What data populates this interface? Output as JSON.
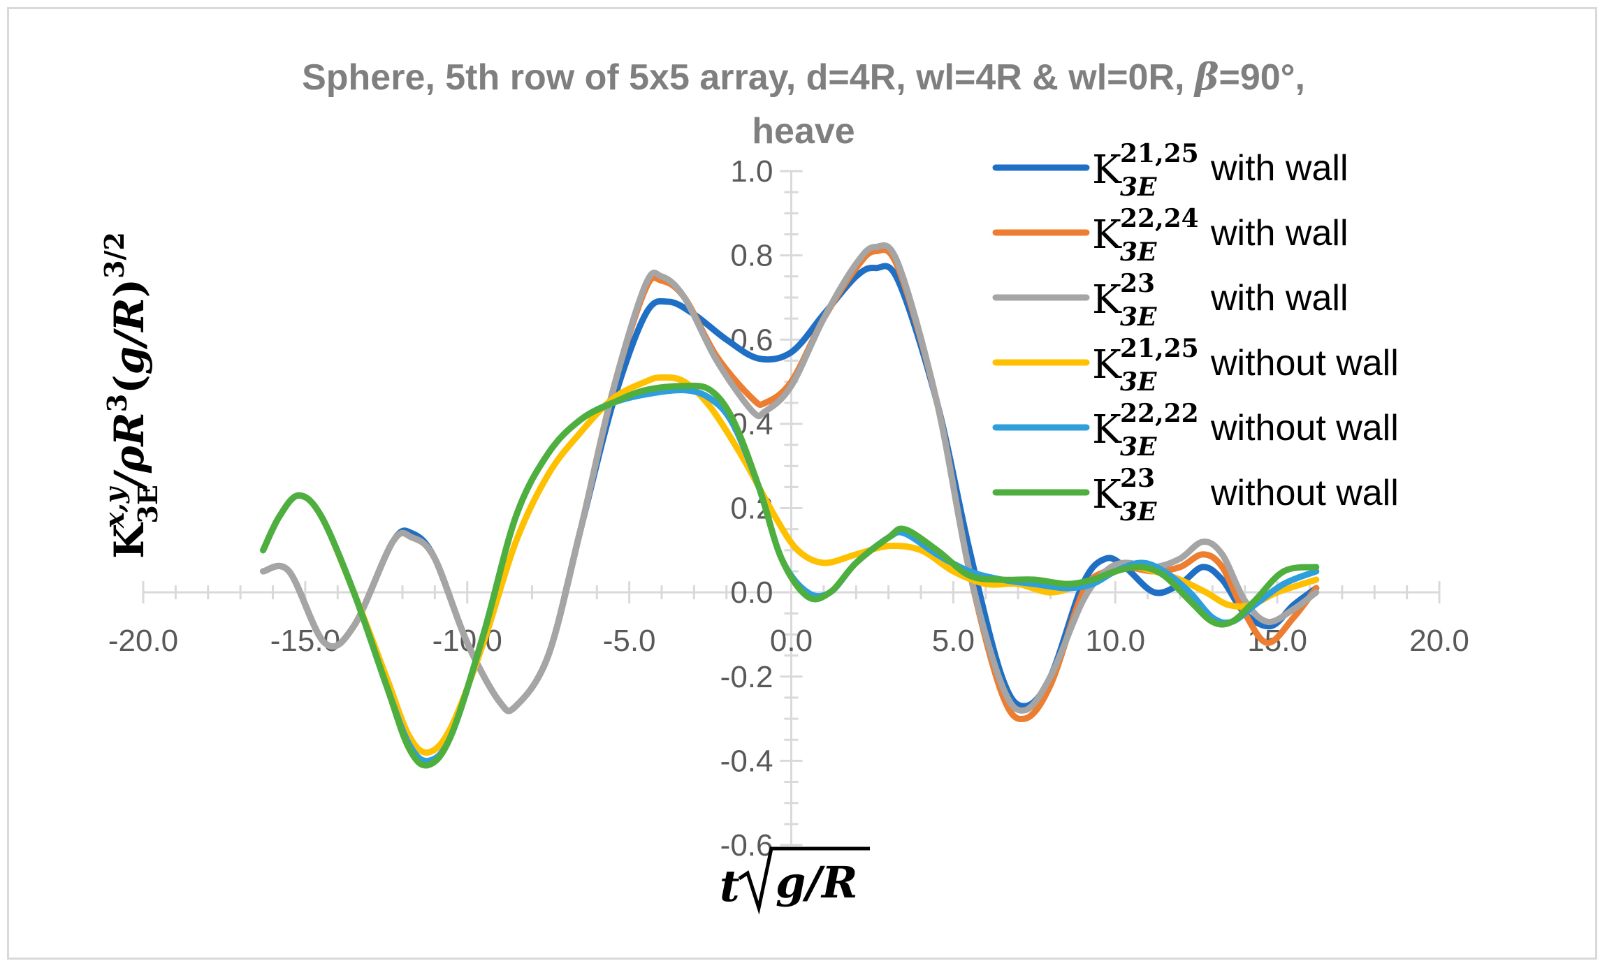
{
  "chart_data": {
    "type": "line",
    "title_line1": "Sphere, 5th row of 5x5 array, d=4R, wl=4R & wl=0R, ",
    "title_beta": "β",
    "title_line1_end": "=90°,",
    "title_line2": "heave",
    "xlabel": "t√g/R",
    "ylabel": "K3E^(x,y)/ρR³(g/R)^(3/2)",
    "xlim": [
      -20,
      20
    ],
    "ylim": [
      -0.6,
      1.0
    ],
    "x_ticks": [
      "-20.0",
      "-15.0",
      "-10.0",
      "-5.0",
      "0.0",
      "5.0",
      "10.0",
      "15.0",
      "20.0"
    ],
    "y_ticks": [
      "1.0",
      "0.8",
      "0.6",
      "0.4",
      "0.2",
      "0.0",
      "-0.2",
      "-0.4",
      "-0.6"
    ],
    "grid": false,
    "legend_position": "top-right",
    "series": [
      {
        "name": "K3E 21,25 with wall",
        "sup": "21,25",
        "suffix": "with wall",
        "color": "#1f6fc5",
        "points": [
          [
            -16.3,
            0.05
          ],
          [
            -15.5,
            0.05
          ],
          [
            -14.4,
            -0.12
          ],
          [
            -13.5,
            -0.08
          ],
          [
            -12.3,
            0.12
          ],
          [
            -11.7,
            0.14
          ],
          [
            -11.0,
            0.08
          ],
          [
            -10.0,
            -0.12
          ],
          [
            -9.0,
            -0.26
          ],
          [
            -8.5,
            -0.27
          ],
          [
            -7.5,
            -0.15
          ],
          [
            -6.5,
            0.15
          ],
          [
            -5.5,
            0.45
          ],
          [
            -4.5,
            0.66
          ],
          [
            -3.8,
            0.69
          ],
          [
            -3.0,
            0.66
          ],
          [
            -2.0,
            0.6
          ],
          [
            -1.0,
            0.555
          ],
          [
            0.0,
            0.57
          ],
          [
            1.0,
            0.66
          ],
          [
            2.0,
            0.75
          ],
          [
            2.6,
            0.77
          ],
          [
            3.3,
            0.74
          ],
          [
            4.5,
            0.45
          ],
          [
            5.5,
            0.1
          ],
          [
            6.5,
            -0.2
          ],
          [
            7.2,
            -0.27
          ],
          [
            8.0,
            -0.2
          ],
          [
            9.0,
            0.02
          ],
          [
            9.7,
            0.08
          ],
          [
            10.3,
            0.06
          ],
          [
            11.2,
            0.0
          ],
          [
            12.0,
            0.02
          ],
          [
            12.7,
            0.06
          ],
          [
            13.3,
            0.03
          ],
          [
            14.0,
            -0.05
          ],
          [
            14.8,
            -0.08
          ],
          [
            15.5,
            -0.03
          ],
          [
            16.2,
            0.01
          ]
        ]
      },
      {
        "name": "K3E 22,24 with wall",
        "sup": "22,24",
        "suffix": "with wall",
        "color": "#ed7d31",
        "points": [
          [
            -16.3,
            0.05
          ],
          [
            -15.5,
            0.05
          ],
          [
            -14.4,
            -0.12
          ],
          [
            -13.5,
            -0.08
          ],
          [
            -12.3,
            0.12
          ],
          [
            -11.7,
            0.13
          ],
          [
            -11.0,
            0.08
          ],
          [
            -10.0,
            -0.12
          ],
          [
            -9.0,
            -0.26
          ],
          [
            -8.5,
            -0.27
          ],
          [
            -7.5,
            -0.15
          ],
          [
            -6.5,
            0.15
          ],
          [
            -5.5,
            0.48
          ],
          [
            -4.5,
            0.72
          ],
          [
            -4.0,
            0.74
          ],
          [
            -3.3,
            0.7
          ],
          [
            -2.3,
            0.56
          ],
          [
            -1.2,
            0.46
          ],
          [
            -0.8,
            0.45
          ],
          [
            0.0,
            0.5
          ],
          [
            1.0,
            0.65
          ],
          [
            2.0,
            0.77
          ],
          [
            2.6,
            0.81
          ],
          [
            3.3,
            0.77
          ],
          [
            4.5,
            0.45
          ],
          [
            5.5,
            0.05
          ],
          [
            6.5,
            -0.24
          ],
          [
            7.2,
            -0.3
          ],
          [
            8.0,
            -0.22
          ],
          [
            9.0,
            0.0
          ],
          [
            9.7,
            0.05
          ],
          [
            10.3,
            0.06
          ],
          [
            11.2,
            0.05
          ],
          [
            12.0,
            0.06
          ],
          [
            12.7,
            0.09
          ],
          [
            13.3,
            0.06
          ],
          [
            14.0,
            -0.05
          ],
          [
            14.7,
            -0.12
          ],
          [
            15.5,
            -0.06
          ],
          [
            16.2,
            0.01
          ]
        ]
      },
      {
        "name": "K3E 23 with wall",
        "sup": "23",
        "suffix": "with wall",
        "color": "#a5a5a5",
        "points": [
          [
            -16.3,
            0.05
          ],
          [
            -15.5,
            0.05
          ],
          [
            -14.4,
            -0.12
          ],
          [
            -13.5,
            -0.08
          ],
          [
            -12.3,
            0.12
          ],
          [
            -11.7,
            0.13
          ],
          [
            -11.0,
            0.08
          ],
          [
            -10.0,
            -0.12
          ],
          [
            -9.0,
            -0.26
          ],
          [
            -8.5,
            -0.27
          ],
          [
            -7.5,
            -0.15
          ],
          [
            -6.5,
            0.15
          ],
          [
            -5.5,
            0.48
          ],
          [
            -4.5,
            0.73
          ],
          [
            -4.0,
            0.75
          ],
          [
            -3.3,
            0.7
          ],
          [
            -2.3,
            0.55
          ],
          [
            -1.2,
            0.43
          ],
          [
            -0.8,
            0.43
          ],
          [
            0.0,
            0.49
          ],
          [
            1.0,
            0.65
          ],
          [
            2.0,
            0.78
          ],
          [
            2.6,
            0.82
          ],
          [
            3.3,
            0.78
          ],
          [
            4.5,
            0.45
          ],
          [
            5.5,
            0.05
          ],
          [
            6.5,
            -0.22
          ],
          [
            7.2,
            -0.28
          ],
          [
            8.0,
            -0.2
          ],
          [
            9.0,
            -0.02
          ],
          [
            9.7,
            0.05
          ],
          [
            10.3,
            0.07
          ],
          [
            11.2,
            0.06
          ],
          [
            12.0,
            0.08
          ],
          [
            12.7,
            0.12
          ],
          [
            13.3,
            0.09
          ],
          [
            14.0,
            -0.02
          ],
          [
            14.7,
            -0.07
          ],
          [
            15.5,
            -0.04
          ],
          [
            16.2,
            0.0
          ]
        ]
      },
      {
        "name": "K3E 21,25 without wall",
        "sup": "21,25",
        "suffix": "without wall",
        "color": "#ffc000",
        "points": [
          [
            -16.3,
            0.1
          ],
          [
            -15.8,
            0.18
          ],
          [
            -15.2,
            0.23
          ],
          [
            -14.5,
            0.18
          ],
          [
            -13.5,
            0.0
          ],
          [
            -12.5,
            -0.2
          ],
          [
            -11.8,
            -0.34
          ],
          [
            -11.2,
            -0.38
          ],
          [
            -10.5,
            -0.32
          ],
          [
            -9.5,
            -0.12
          ],
          [
            -8.5,
            0.12
          ],
          [
            -7.5,
            0.28
          ],
          [
            -6.5,
            0.38
          ],
          [
            -5.5,
            0.46
          ],
          [
            -4.5,
            0.5
          ],
          [
            -4.0,
            0.51
          ],
          [
            -3.3,
            0.5
          ],
          [
            -2.5,
            0.44
          ],
          [
            -1.5,
            0.32
          ],
          [
            -0.5,
            0.18
          ],
          [
            0.2,
            0.1
          ],
          [
            1.0,
            0.07
          ],
          [
            2.0,
            0.09
          ],
          [
            3.0,
            0.11
          ],
          [
            4.0,
            0.1
          ],
          [
            5.0,
            0.05
          ],
          [
            6.0,
            0.02
          ],
          [
            7.0,
            0.02
          ],
          [
            8.0,
            0.0
          ],
          [
            9.0,
            0.02
          ],
          [
            9.7,
            0.04
          ],
          [
            10.5,
            0.06
          ],
          [
            11.2,
            0.05
          ],
          [
            12.0,
            0.03
          ],
          [
            12.8,
            0.0
          ],
          [
            13.5,
            -0.03
          ],
          [
            14.2,
            -0.03
          ],
          [
            15.0,
            0.0
          ],
          [
            16.2,
            0.03
          ]
        ]
      },
      {
        "name": "K3E 22,22 without wall",
        "sup": "22,22",
        "suffix": "without wall",
        "color": "#2e9fdb",
        "points": [
          [
            -16.3,
            0.1
          ],
          [
            -15.8,
            0.18
          ],
          [
            -15.2,
            0.23
          ],
          [
            -14.5,
            0.18
          ],
          [
            -13.5,
            0.0
          ],
          [
            -12.5,
            -0.22
          ],
          [
            -11.8,
            -0.36
          ],
          [
            -11.2,
            -0.4
          ],
          [
            -10.5,
            -0.34
          ],
          [
            -9.5,
            -0.1
          ],
          [
            -8.5,
            0.18
          ],
          [
            -7.5,
            0.33
          ],
          [
            -6.5,
            0.41
          ],
          [
            -5.5,
            0.45
          ],
          [
            -4.5,
            0.47
          ],
          [
            -3.3,
            0.48
          ],
          [
            -2.5,
            0.46
          ],
          [
            -1.8,
            0.4
          ],
          [
            -1.0,
            0.25
          ],
          [
            -0.3,
            0.08
          ],
          [
            0.5,
            0.0
          ],
          [
            1.2,
            0.0
          ],
          [
            2.0,
            0.07
          ],
          [
            3.0,
            0.13
          ],
          [
            3.5,
            0.14
          ],
          [
            4.5,
            0.09
          ],
          [
            5.5,
            0.05
          ],
          [
            6.5,
            0.03
          ],
          [
            7.5,
            0.02
          ],
          [
            8.5,
            0.01
          ],
          [
            9.3,
            0.02
          ],
          [
            10.0,
            0.05
          ],
          [
            10.8,
            0.07
          ],
          [
            11.5,
            0.05
          ],
          [
            12.3,
            0.0
          ],
          [
            13.0,
            -0.06
          ],
          [
            13.6,
            -0.07
          ],
          [
            14.3,
            -0.03
          ],
          [
            15.2,
            0.02
          ],
          [
            16.2,
            0.05
          ]
        ]
      },
      {
        "name": "K3E 23 without wall",
        "sup": "23",
        "suffix": "without wall",
        "color": "#4eaf3f",
        "points": [
          [
            -16.3,
            0.1
          ],
          [
            -15.8,
            0.18
          ],
          [
            -15.2,
            0.23
          ],
          [
            -14.5,
            0.18
          ],
          [
            -13.5,
            0.0
          ],
          [
            -12.5,
            -0.22
          ],
          [
            -11.8,
            -0.37
          ],
          [
            -11.2,
            -0.41
          ],
          [
            -10.5,
            -0.34
          ],
          [
            -9.5,
            -0.1
          ],
          [
            -8.5,
            0.18
          ],
          [
            -7.5,
            0.33
          ],
          [
            -6.5,
            0.41
          ],
          [
            -5.5,
            0.45
          ],
          [
            -4.5,
            0.48
          ],
          [
            -3.3,
            0.49
          ],
          [
            -2.5,
            0.48
          ],
          [
            -1.8,
            0.41
          ],
          [
            -1.0,
            0.25
          ],
          [
            -0.3,
            0.08
          ],
          [
            0.5,
            -0.01
          ],
          [
            1.2,
            0.0
          ],
          [
            2.0,
            0.07
          ],
          [
            3.0,
            0.13
          ],
          [
            3.5,
            0.15
          ],
          [
            4.5,
            0.1
          ],
          [
            5.5,
            0.04
          ],
          [
            6.5,
            0.03
          ],
          [
            7.5,
            0.03
          ],
          [
            8.5,
            0.02
          ],
          [
            9.3,
            0.03
          ],
          [
            10.0,
            0.05
          ],
          [
            10.8,
            0.06
          ],
          [
            11.5,
            0.04
          ],
          [
            12.3,
            -0.02
          ],
          [
            13.0,
            -0.07
          ],
          [
            13.6,
            -0.07
          ],
          [
            14.3,
            -0.02
          ],
          [
            15.2,
            0.05
          ],
          [
            16.2,
            0.06
          ]
        ]
      }
    ]
  }
}
